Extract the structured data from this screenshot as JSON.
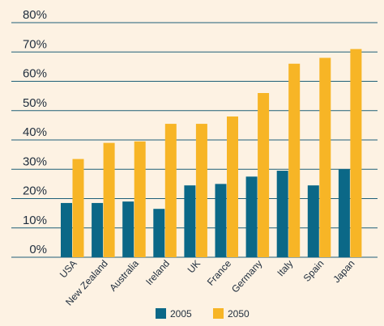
{
  "chart_data": {
    "type": "bar",
    "categories": [
      "USA",
      "New Zealand",
      "Australia",
      "Ireland",
      "UK",
      "France",
      "Germany",
      "Italy",
      "Spain",
      "Japan"
    ],
    "series": [
      {
        "name": "2005",
        "color": "#0b6887",
        "values": [
          18.5,
          18.5,
          19,
          16.5,
          24.5,
          25,
          27.5,
          29.5,
          24.5,
          30
        ]
      },
      {
        "name": "2050",
        "color": "#f7b526",
        "values": [
          33.5,
          39,
          39.5,
          45.5,
          45.5,
          48,
          56,
          66,
          68,
          71
        ]
      }
    ],
    "yticks": [
      "0%",
      "10%",
      "20%",
      "30%",
      "40%",
      "50%",
      "60%",
      "70%",
      "80%"
    ],
    "ylim": [
      0,
      80
    ],
    "grid": true,
    "legend_position": "bottom-center",
    "gridline_color": "#1f5f78",
    "background": "#fdf2e3"
  }
}
